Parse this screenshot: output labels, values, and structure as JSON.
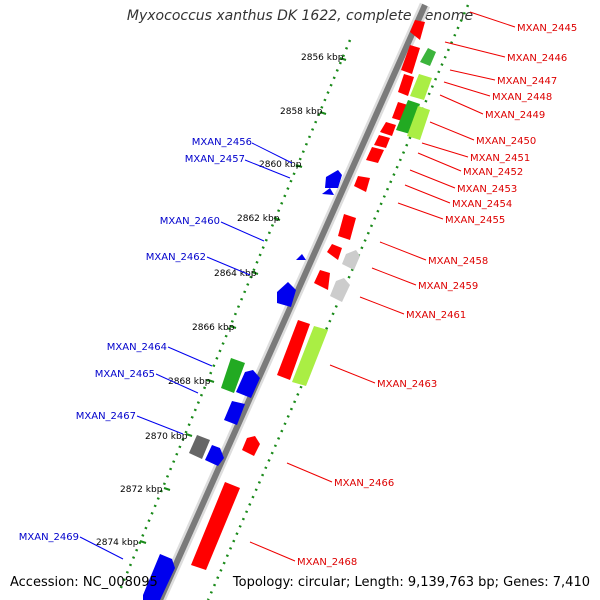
{
  "title": "Myxococcus xanthus DK 1622, complete genome",
  "footer": {
    "accession": "Accession: NC_008095",
    "summary": "Topology: circular; Length: 9,139,763 bp; Genes: 7,410"
  },
  "colors": {
    "forward_cds": "#ff0000",
    "reverse_cds": "#0000ff",
    "rna": "#3cb43c",
    "other": "#888888",
    "right_label": "#cc0000",
    "left_label": "#0000cc"
  },
  "ticks": [
    "2856 kbp",
    "2858 kbp",
    "2860 kbp",
    "2862 kbp",
    "2864 kbp",
    "2866 kbp",
    "2868 kbp",
    "2870 kbp",
    "2872 kbp",
    "2874 kbp"
  ],
  "right_labels": [
    "MXAN_2445",
    "MXAN_2446",
    "MXAN_2447",
    "MXAN_2448",
    "MXAN_2449",
    "MXAN_2450",
    "MXAN_2451",
    "MXAN_2452",
    "MXAN_2453",
    "MXAN_2454",
    "MXAN_2455",
    "MXAN_2458",
    "MXAN_2459",
    "MXAN_2461",
    "MXAN_2463",
    "MXAN_2466",
    "MXAN_2468"
  ],
  "left_labels": [
    "MXAN_2456",
    "MXAN_2457",
    "MXAN_2460",
    "MXAN_2462",
    "MXAN_2464",
    "MXAN_2465",
    "MXAN_2467",
    "MXAN_2469"
  ]
}
